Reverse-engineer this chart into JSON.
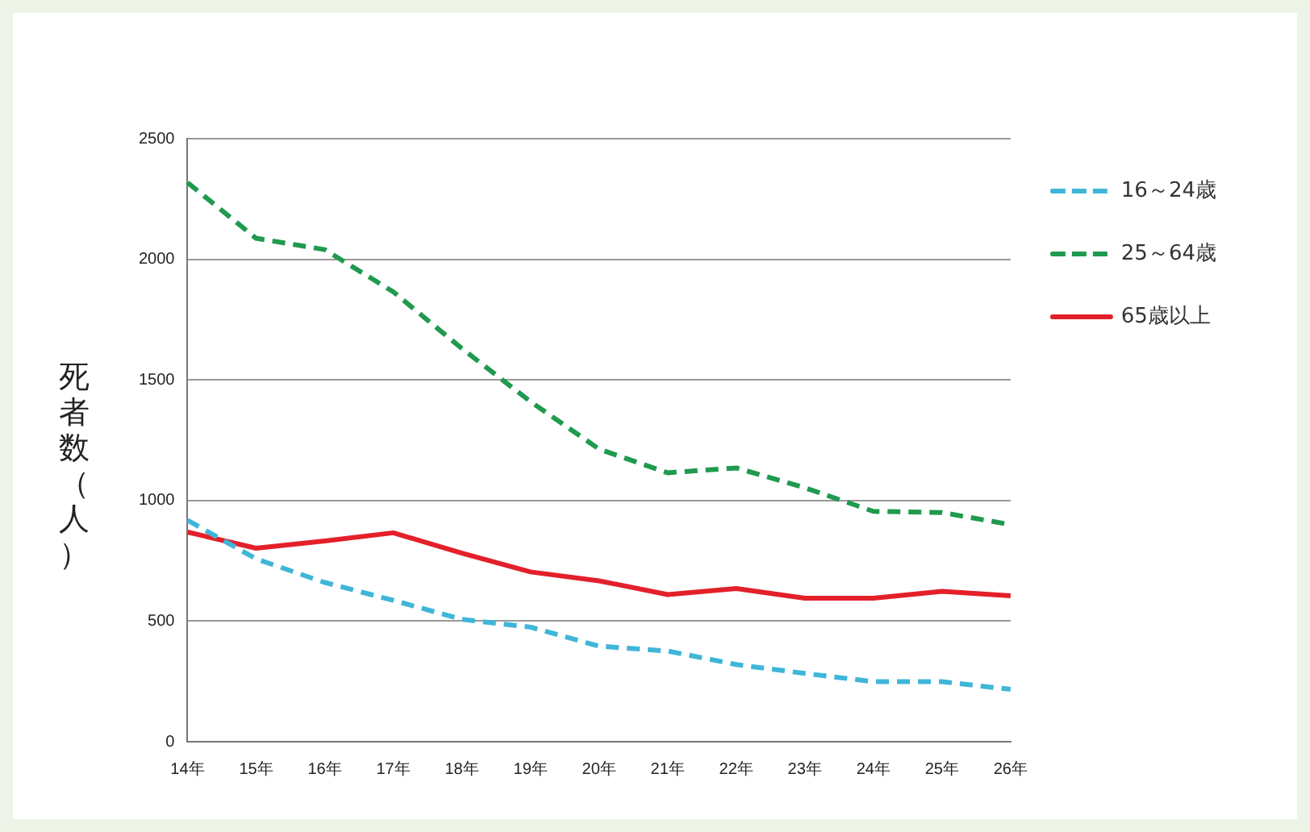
{
  "chart_data": {
    "type": "line",
    "ylabel": "死者数（人）",
    "categories": [
      "14年",
      "15年",
      "16年",
      "17年",
      "18年",
      "19年",
      "20年",
      "21年",
      "22年",
      "23年",
      "24年",
      "25年",
      "26年"
    ],
    "series": [
      {
        "name": "16～24歳",
        "color": "#3fb6d8",
        "line_style": "dashed",
        "values": [
          918,
          758,
          660,
          586,
          507,
          475,
          396,
          376,
          320,
          283,
          249,
          249,
          217
        ]
      },
      {
        "name": "25～64歳",
        "color": "#1f9a4e",
        "line_style": "dashed",
        "values": [
          2318,
          2087,
          2040,
          1865,
          1630,
          1410,
          1213,
          1115,
          1135,
          1053,
          955,
          950,
          900
        ]
      },
      {
        "name": "65歳以上",
        "color": "#e3202a",
        "line_style": "solid",
        "values": [
          869,
          802,
          832,
          866,
          782,
          704,
          667,
          610,
          635,
          595,
          595,
          623,
          605
        ]
      }
    ],
    "ylim": [
      0,
      2500
    ],
    "yticks": [
      0,
      500,
      1000,
      1500,
      2000,
      2500
    ],
    "grid": "y",
    "legend": "right",
    "marker": "none"
  }
}
